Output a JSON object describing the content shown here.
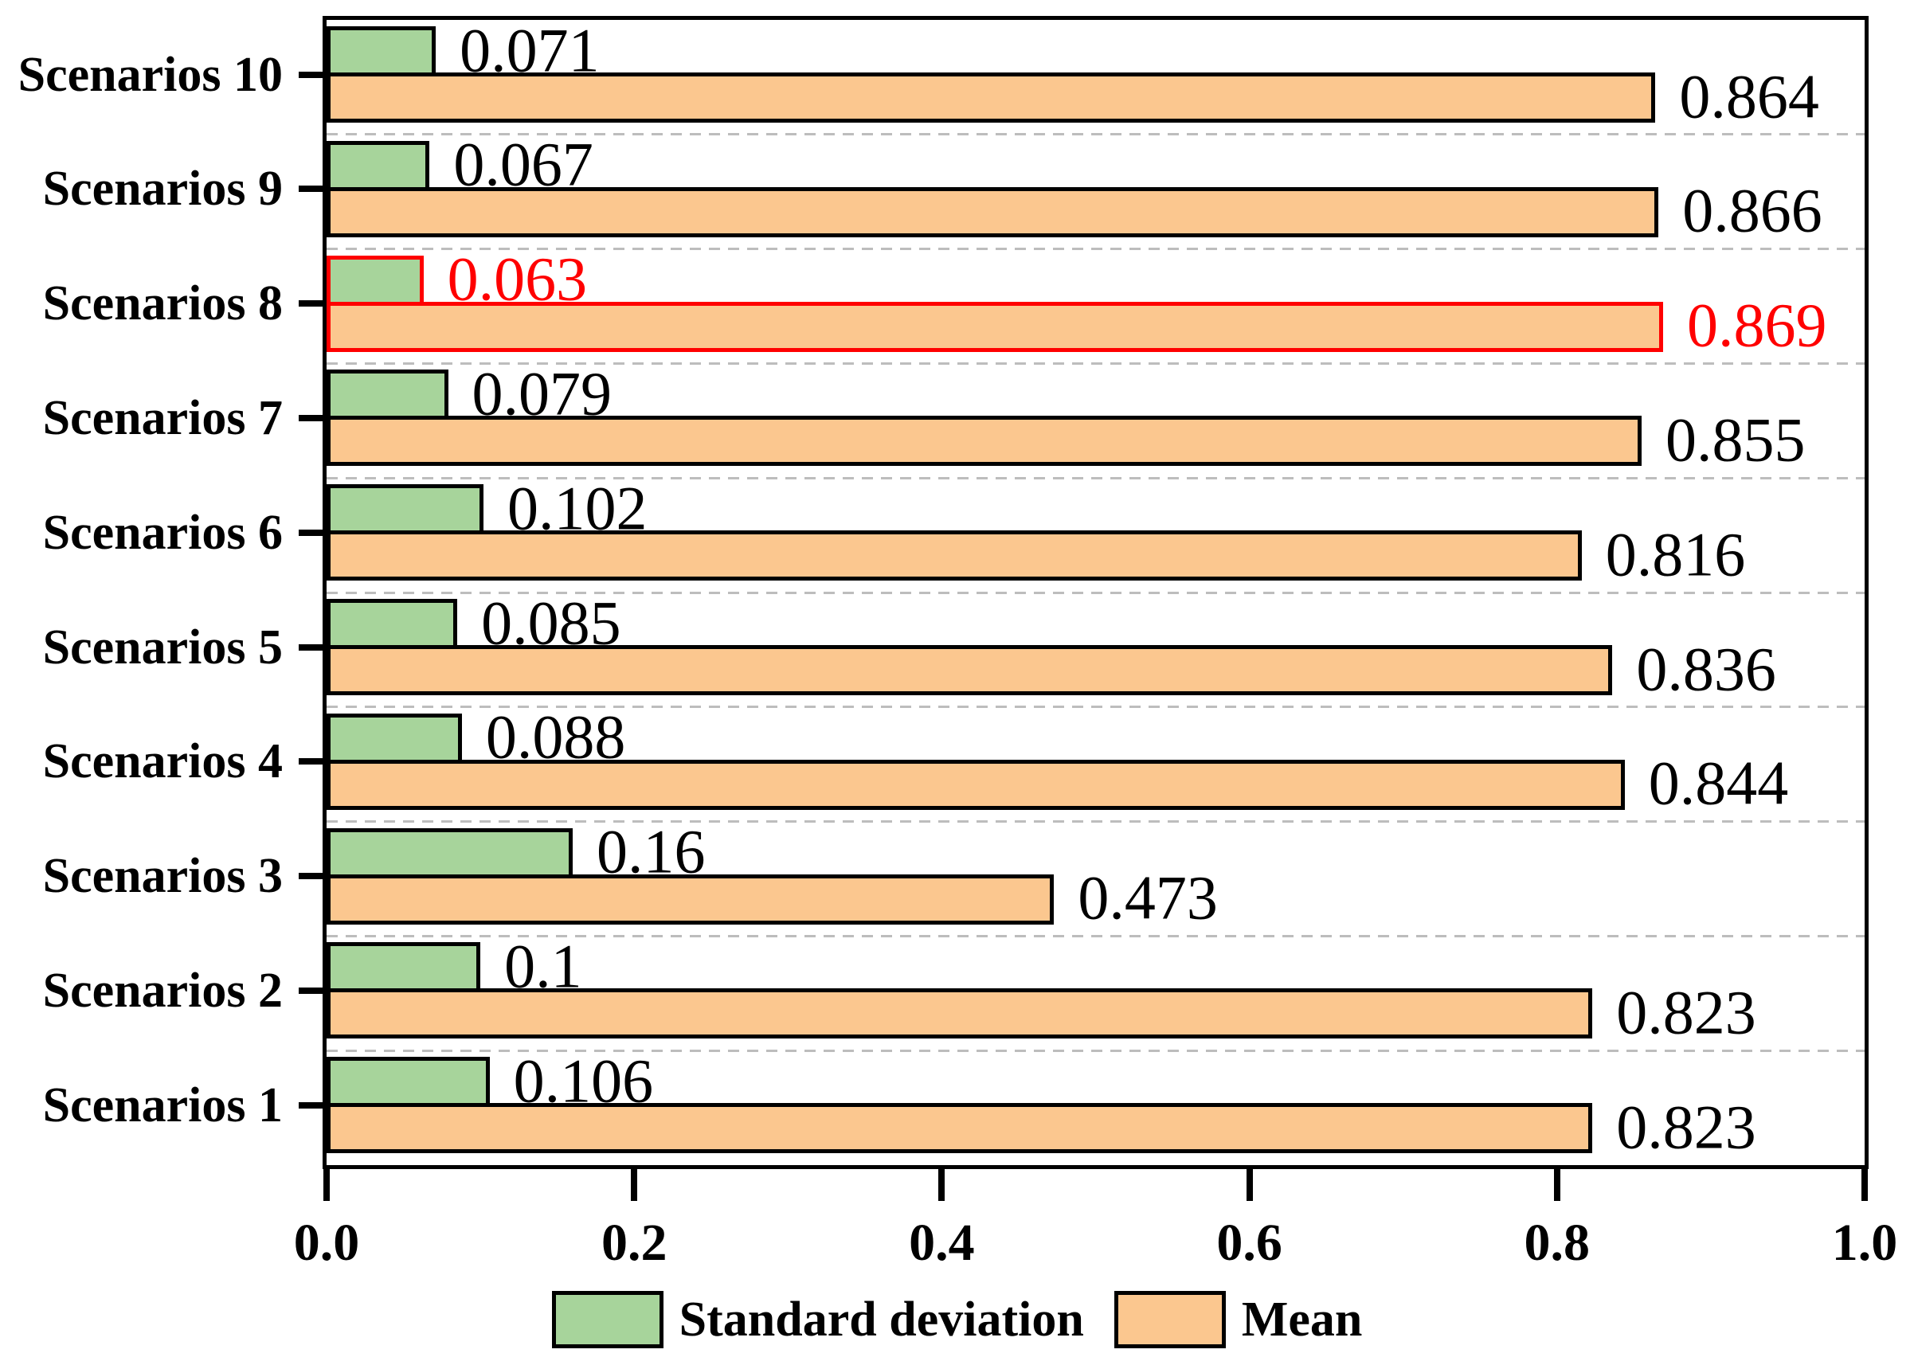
{
  "chart_data": {
    "type": "bar",
    "orientation": "horizontal",
    "row_order": "top-to-bottom",
    "categories": [
      "Scenarios 10",
      "Scenarios 9",
      "Scenarios 8",
      "Scenarios 7",
      "Scenarios 6",
      "Scenarios 5",
      "Scenarios 4",
      "Scenarios 3",
      "Scenarios 2",
      "Scenarios 1"
    ],
    "series": [
      {
        "name": "Standard deviation",
        "color": "#a7d49b",
        "values": [
          0.071,
          0.067,
          0.063,
          0.079,
          0.102,
          0.085,
          0.088,
          0.16,
          0.1,
          0.106
        ]
      },
      {
        "name": "Mean",
        "color": "#fbc78f",
        "values": [
          0.864,
          0.866,
          0.869,
          0.855,
          0.816,
          0.836,
          0.844,
          0.473,
          0.823,
          0.823
        ]
      }
    ],
    "highlight": {
      "category": "Scenarios 8",
      "color": "#ff0000"
    },
    "x_axis": {
      "min": 0.0,
      "max": 1.0,
      "ticks": [
        {
          "label": "0.0",
          "value": 0.0
        },
        {
          "label": "0.2",
          "value": 0.2
        },
        {
          "label": "0.4",
          "value": 0.4
        },
        {
          "label": "0.6",
          "value": 0.6
        },
        {
          "label": "0.8",
          "value": 0.8
        },
        {
          "label": "1.0",
          "value": 1.0
        }
      ]
    },
    "grid": "dashed-horizontal-between-groups",
    "legend_position": "bottom-center",
    "bar_outline_color": "#000000",
    "gridline_color": "#bdbdbd"
  },
  "legend": {
    "items": [
      {
        "label": "Standard deviation",
        "color": "#a7d49b"
      },
      {
        "label": "Mean",
        "color": "#fbc78f"
      }
    ]
  }
}
